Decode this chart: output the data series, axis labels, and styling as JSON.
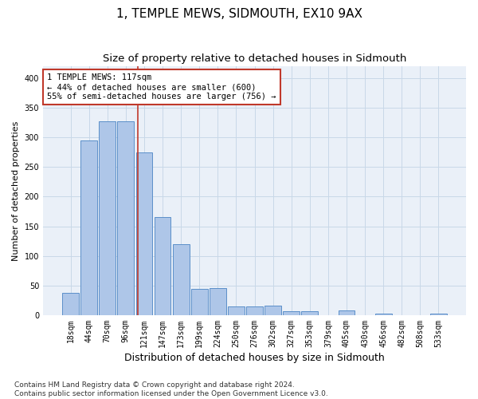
{
  "title": "1, TEMPLE MEWS, SIDMOUTH, EX10 9AX",
  "subtitle": "Size of property relative to detached houses in Sidmouth",
  "xlabel": "Distribution of detached houses by size in Sidmouth",
  "ylabel": "Number of detached properties",
  "bar_labels": [
    "18sqm",
    "44sqm",
    "70sqm",
    "96sqm",
    "121sqm",
    "147sqm",
    "173sqm",
    "199sqm",
    "224sqm",
    "250sqm",
    "276sqm",
    "302sqm",
    "327sqm",
    "353sqm",
    "379sqm",
    "405sqm",
    "430sqm",
    "456sqm",
    "482sqm",
    "508sqm",
    "533sqm"
  ],
  "bar_values": [
    37,
    295,
    327,
    327,
    275,
    165,
    120,
    44,
    46,
    15,
    15,
    16,
    6,
    6,
    0,
    8,
    0,
    2,
    0,
    0,
    2
  ],
  "bar_color": "#aec6e8",
  "bar_edge_color": "#5b8fc9",
  "vline_color": "#c0392b",
  "annotation_text": "1 TEMPLE MEWS: 117sqm\n← 44% of detached houses are smaller (600)\n55% of semi-detached houses are larger (756) →",
  "annotation_box_color": "#ffffff",
  "annotation_box_edge": "#c0392b",
  "ylim": [
    0,
    420
  ],
  "yticks": [
    0,
    50,
    100,
    150,
    200,
    250,
    300,
    350,
    400
  ],
  "grid_color": "#c8d8e8",
  "bg_color": "#eaf0f8",
  "footer": "Contains HM Land Registry data © Crown copyright and database right 2024.\nContains public sector information licensed under the Open Government Licence v3.0.",
  "title_fontsize": 11,
  "subtitle_fontsize": 9.5,
  "xlabel_fontsize": 9,
  "ylabel_fontsize": 8,
  "tick_fontsize": 7,
  "annotation_fontsize": 7.5,
  "footer_fontsize": 6.5
}
